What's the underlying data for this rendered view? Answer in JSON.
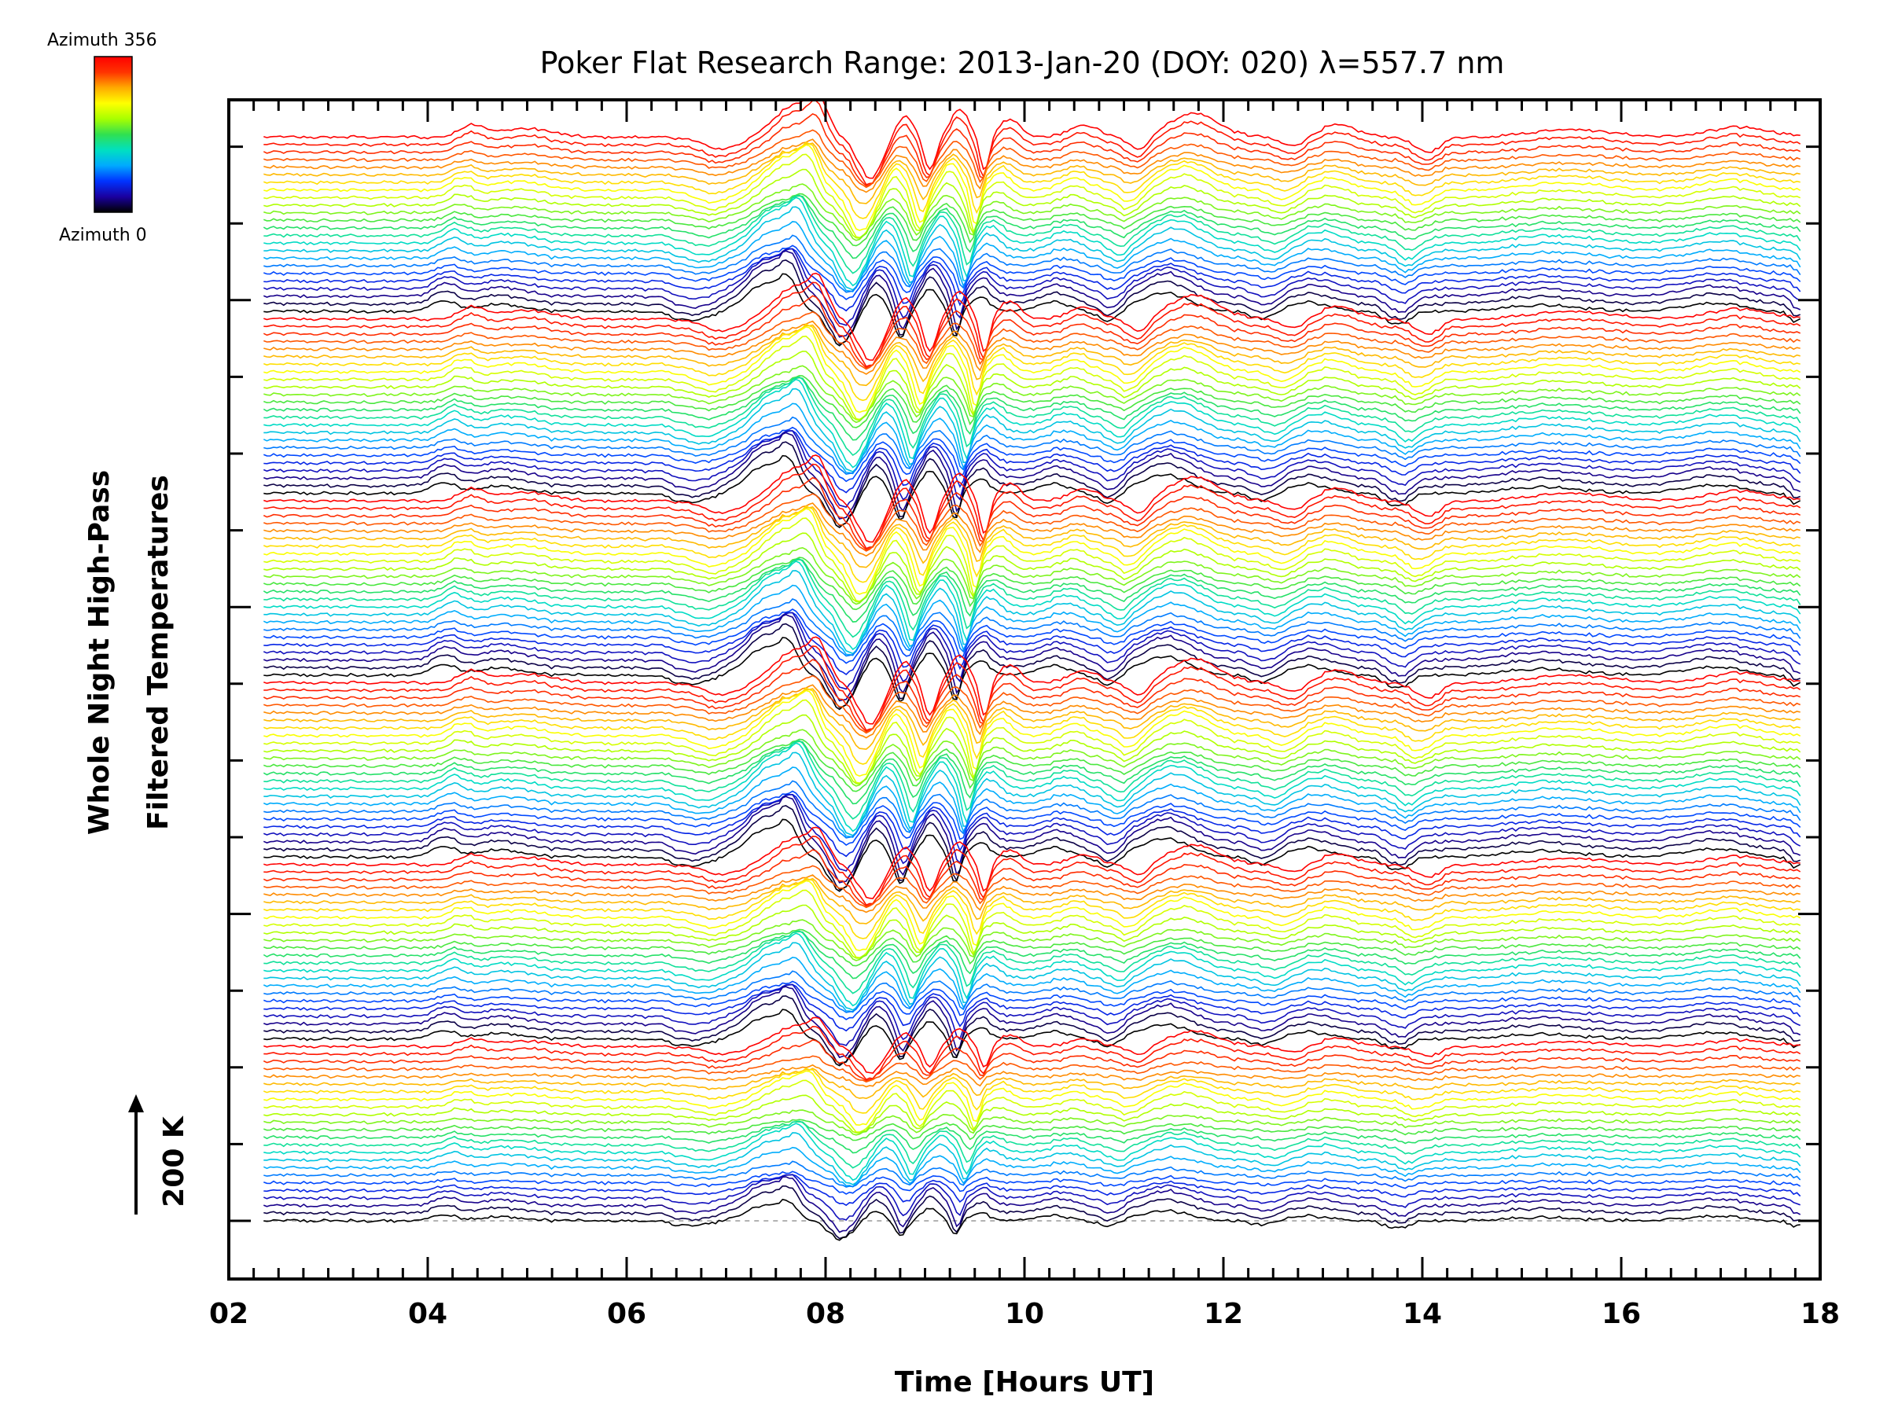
{
  "chart_data": {
    "type": "line",
    "title": "Poker Flat Research Range: 2013-Jan-20 (DOY: 020) λ=557.7 nm",
    "xlabel": "Time [Hours UT]",
    "ylabel_lines": [
      "Whole Night High-Pass",
      "Filtered Temperatures"
    ],
    "scale_bar_label": "200 K",
    "xlim": [
      2,
      18
    ],
    "xticks": [
      "02",
      "04",
      "06",
      "08",
      "10",
      "12",
      "14",
      "16",
      "18"
    ],
    "x_start": 2.35,
    "x_end": 17.8,
    "stack": {
      "groups": 6,
      "lines_per_group": 24,
      "total_traces": 144
    },
    "colorbar": {
      "top_label": "Azimuth 356",
      "bottom_label": "Azimuth 0",
      "azimuth_range": [
        0,
        356
      ],
      "colors": [
        "#000000",
        "#1a00a0",
        "#0033ff",
        "#00aaff",
        "#00e0c0",
        "#30e050",
        "#a8ff00",
        "#ffff00",
        "#ffaa00",
        "#ff3300",
        "#ff0000"
      ]
    },
    "baseline_style": "dashed gray reference line at lowest trace",
    "notable_features": [
      {
        "time": 7.6,
        "description": "strong positive peak followed by dip"
      },
      {
        "time": 8.2,
        "description": "deep negative dip"
      },
      {
        "time": 9.3,
        "description": "sharp narrow dip"
      },
      {
        "time": 11.3,
        "description": "broad positive peak"
      },
      {
        "time": 13.7,
        "description": "negative dip"
      }
    ]
  }
}
